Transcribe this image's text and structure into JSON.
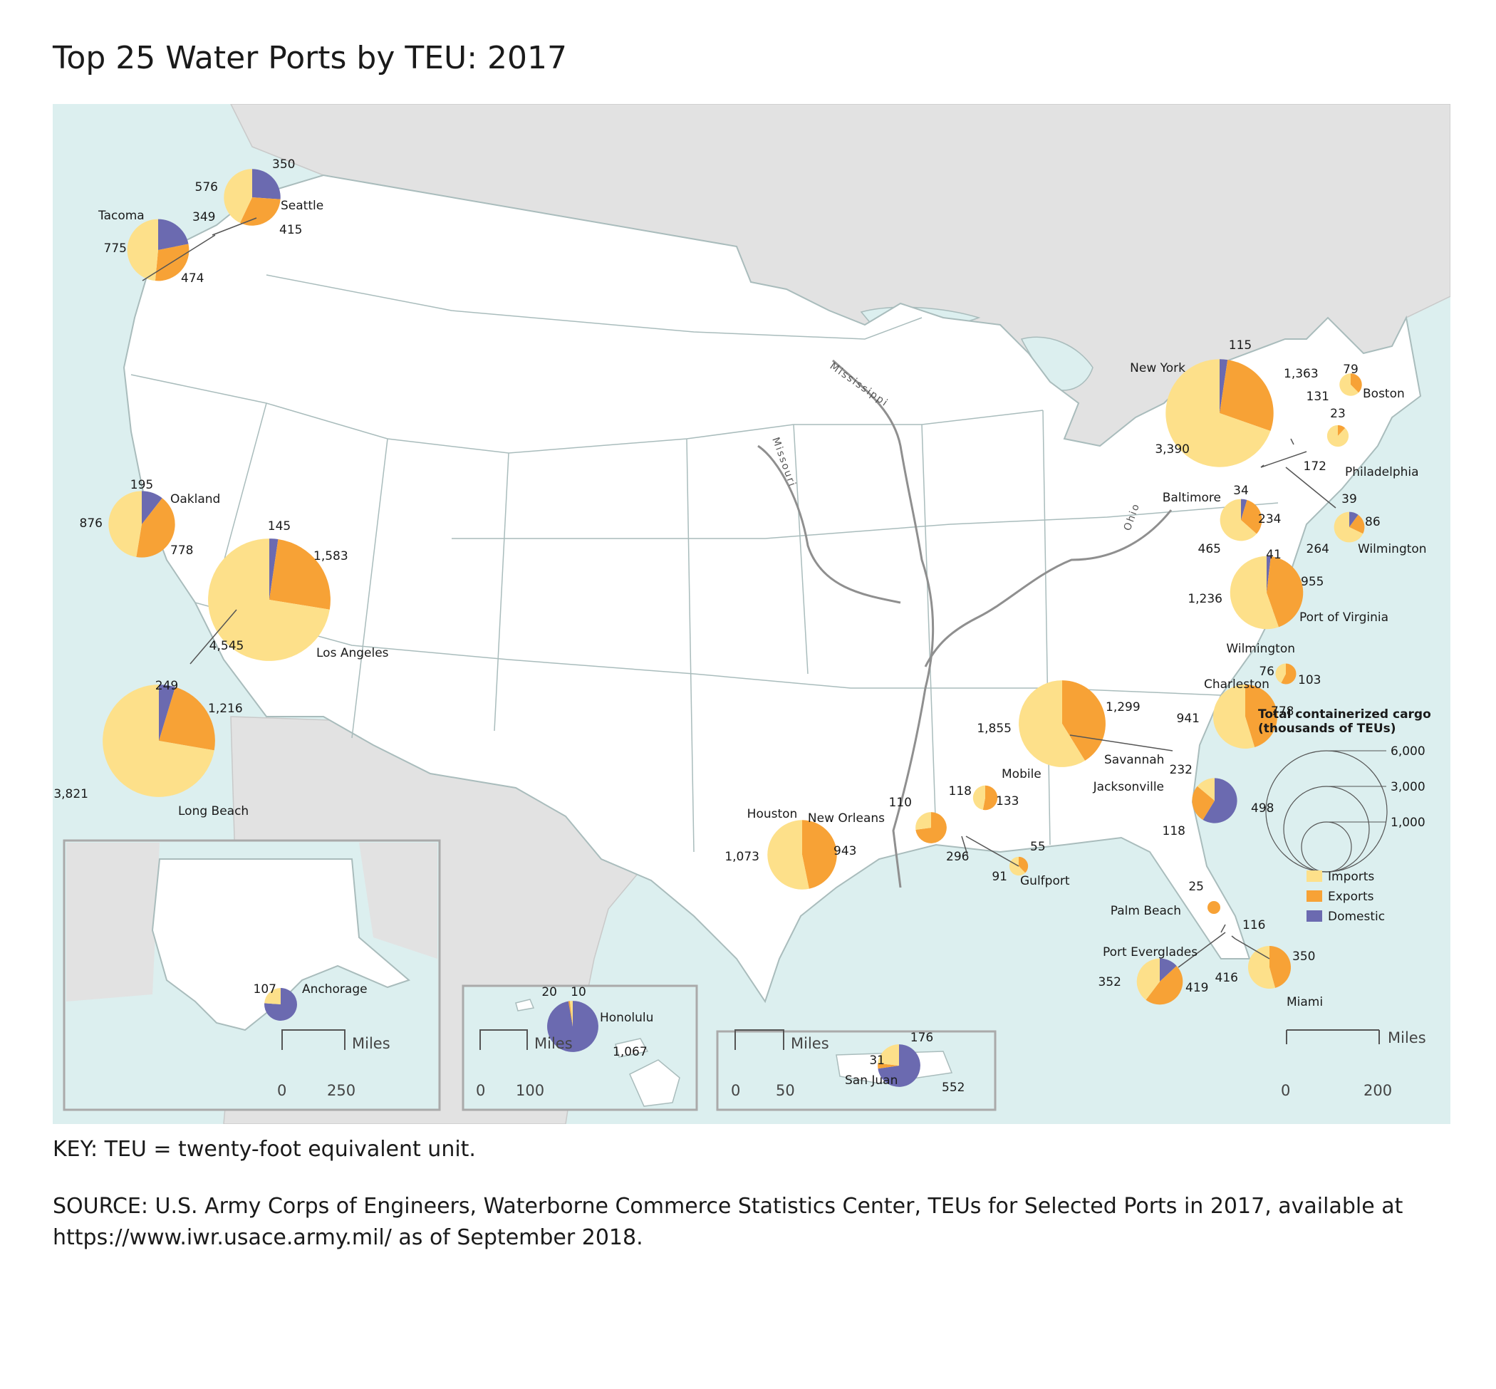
{
  "title": "Top 25 Water Ports by TEU: 2017",
  "key_note": "KEY: TEU = twenty-foot equivalent unit.",
  "source_note": "SOURCE: U.S. Army Corps of Engineers, Waterborne Commerce Statistics Center, TEUs for Selected Ports in 2017, available at https://www.iwr.usace.army.mil/ as of September 2018.",
  "colors": {
    "imports": "#fde08a",
    "exports": "#f7a236",
    "domestic": "#6b6ab0",
    "water": "#dcefef",
    "land": "#ffffff",
    "foreign": "#e2e2e2",
    "border": "#a9bcbc"
  },
  "rivers": [
    "Mississippi",
    "Missouri",
    "Ohio"
  ],
  "legend": {
    "title_line1": "Total containerized cargo",
    "title_line2": "(thousands of TEUs)",
    "size_labels": [
      "6,000",
      "3,000",
      "1,000"
    ],
    "size_values": [
      6000,
      3000,
      1000
    ],
    "categories": [
      "Imports",
      "Exports",
      "Domestic"
    ]
  },
  "scales": {
    "main": {
      "label": "Miles",
      "ticks": [
        "0",
        "200"
      ]
    },
    "alaska": {
      "label": "Miles",
      "ticks": [
        "0",
        "250"
      ]
    },
    "hawaii": {
      "label": "Miles",
      "ticks": [
        "0",
        "100"
      ]
    },
    "puerto_rico": {
      "label": "Miles",
      "ticks": [
        "0",
        "50"
      ]
    }
  },
  "ports": [
    {
      "name": "Seattle",
      "imports": 576,
      "exports": 415,
      "domestic": 350
    },
    {
      "name": "Tacoma",
      "imports": 775,
      "exports": 474,
      "domestic": 349
    },
    {
      "name": "Oakland",
      "imports": 876,
      "exports": 778,
      "domestic": 195
    },
    {
      "name": "Los Angeles",
      "imports": 4545,
      "exports": 1583,
      "domestic": 145
    },
    {
      "name": "Long Beach",
      "imports": 3821,
      "exports": 1216,
      "domestic": 249
    },
    {
      "name": "New York",
      "imports": 3390,
      "exports": 1363,
      "domestic": 115
    },
    {
      "name": "Boston",
      "imports": 131,
      "exports": 79,
      "domestic": null
    },
    {
      "name": "Philadelphia",
      "imports": 172,
      "exports": 23,
      "domestic": null
    },
    {
      "name": "Baltimore",
      "imports": 465,
      "exports": 234,
      "domestic": 34
    },
    {
      "name": "Wilmington",
      "imports": 264,
      "exports": 86,
      "domestic": 39
    },
    {
      "name": "Port of Virginia",
      "imports": 1236,
      "exports": 955,
      "domestic": 41
    },
    {
      "name": "Wilmington",
      "imports": 76,
      "exports": 103,
      "domestic": null
    },
    {
      "name": "Charleston",
      "imports": 941,
      "exports": 778,
      "domestic": null
    },
    {
      "name": "Savannah",
      "imports": 1855,
      "exports": 1299,
      "domestic": null
    },
    {
      "name": "Jacksonville",
      "imports": 118,
      "exports": 232,
      "domestic": 498
    },
    {
      "name": "Mobile",
      "imports": 118,
      "exports": 133,
      "domestic": null
    },
    {
      "name": "New Orleans",
      "imports": 110,
      "exports": 296,
      "domestic": null
    },
    {
      "name": "Gulfport",
      "imports": 91,
      "exports": 55,
      "domestic": null
    },
    {
      "name": "Houston",
      "imports": 1073,
      "exports": 943,
      "domestic": null
    },
    {
      "name": "Palm Beach",
      "imports": null,
      "exports": 25,
      "domestic": null
    },
    {
      "name": "Port Everglades",
      "imports": 352,
      "exports": 419,
      "domestic": 116
    },
    {
      "name": "Miami",
      "imports": 416,
      "exports": 350,
      "domestic": null
    },
    {
      "name": "Anchorage",
      "imports": 107,
      "exports": null,
      "domestic": 341
    },
    {
      "name": "Honolulu",
      "imports": 20,
      "exports": 10,
      "domestic": 1067
    },
    {
      "name": "San Juan",
      "imports": 176,
      "exports": 31,
      "domestic": 552
    }
  ]
}
